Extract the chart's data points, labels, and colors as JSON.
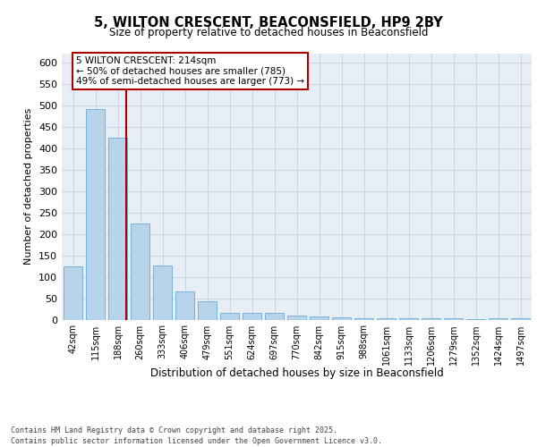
{
  "title1": "5, WILTON CRESCENT, BEACONSFIELD, HP9 2BY",
  "title2": "Size of property relative to detached houses in Beaconsfield",
  "xlabel": "Distribution of detached houses by size in Beaconsfield",
  "ylabel": "Number of detached properties",
  "bar_labels": [
    "42sqm",
    "115sqm",
    "188sqm",
    "260sqm",
    "333sqm",
    "406sqm",
    "479sqm",
    "551sqm",
    "624sqm",
    "697sqm",
    "770sqm",
    "842sqm",
    "915sqm",
    "988sqm",
    "1061sqm",
    "1133sqm",
    "1206sqm",
    "1279sqm",
    "1352sqm",
    "1424sqm",
    "1497sqm"
  ],
  "bar_values": [
    125,
    490,
    425,
    225,
    127,
    65,
    42,
    15,
    15,
    15,
    10,
    8,
    5,
    3,
    3,
    3,
    3,
    3,
    2,
    3,
    3
  ],
  "bar_color": "#b8d4ea",
  "bar_edgecolor": "#6aaad4",
  "grid_color": "#c8d4e4",
  "background_color": "#e8eef6",
  "vline_color": "#aa0000",
  "annotation_text": "5 WILTON CRESCENT: 214sqm\n← 50% of detached houses are smaller (785)\n49% of semi-detached houses are larger (773) →",
  "annotation_box_color": "#ffffff",
  "annotation_box_edgecolor": "#aa0000",
  "footer_text": "Contains HM Land Registry data © Crown copyright and database right 2025.\nContains public sector information licensed under the Open Government Licence v3.0.",
  "ylim": [
    0,
    620
  ],
  "yticks": [
    0,
    50,
    100,
    150,
    200,
    250,
    300,
    350,
    400,
    450,
    500,
    550,
    600
  ]
}
